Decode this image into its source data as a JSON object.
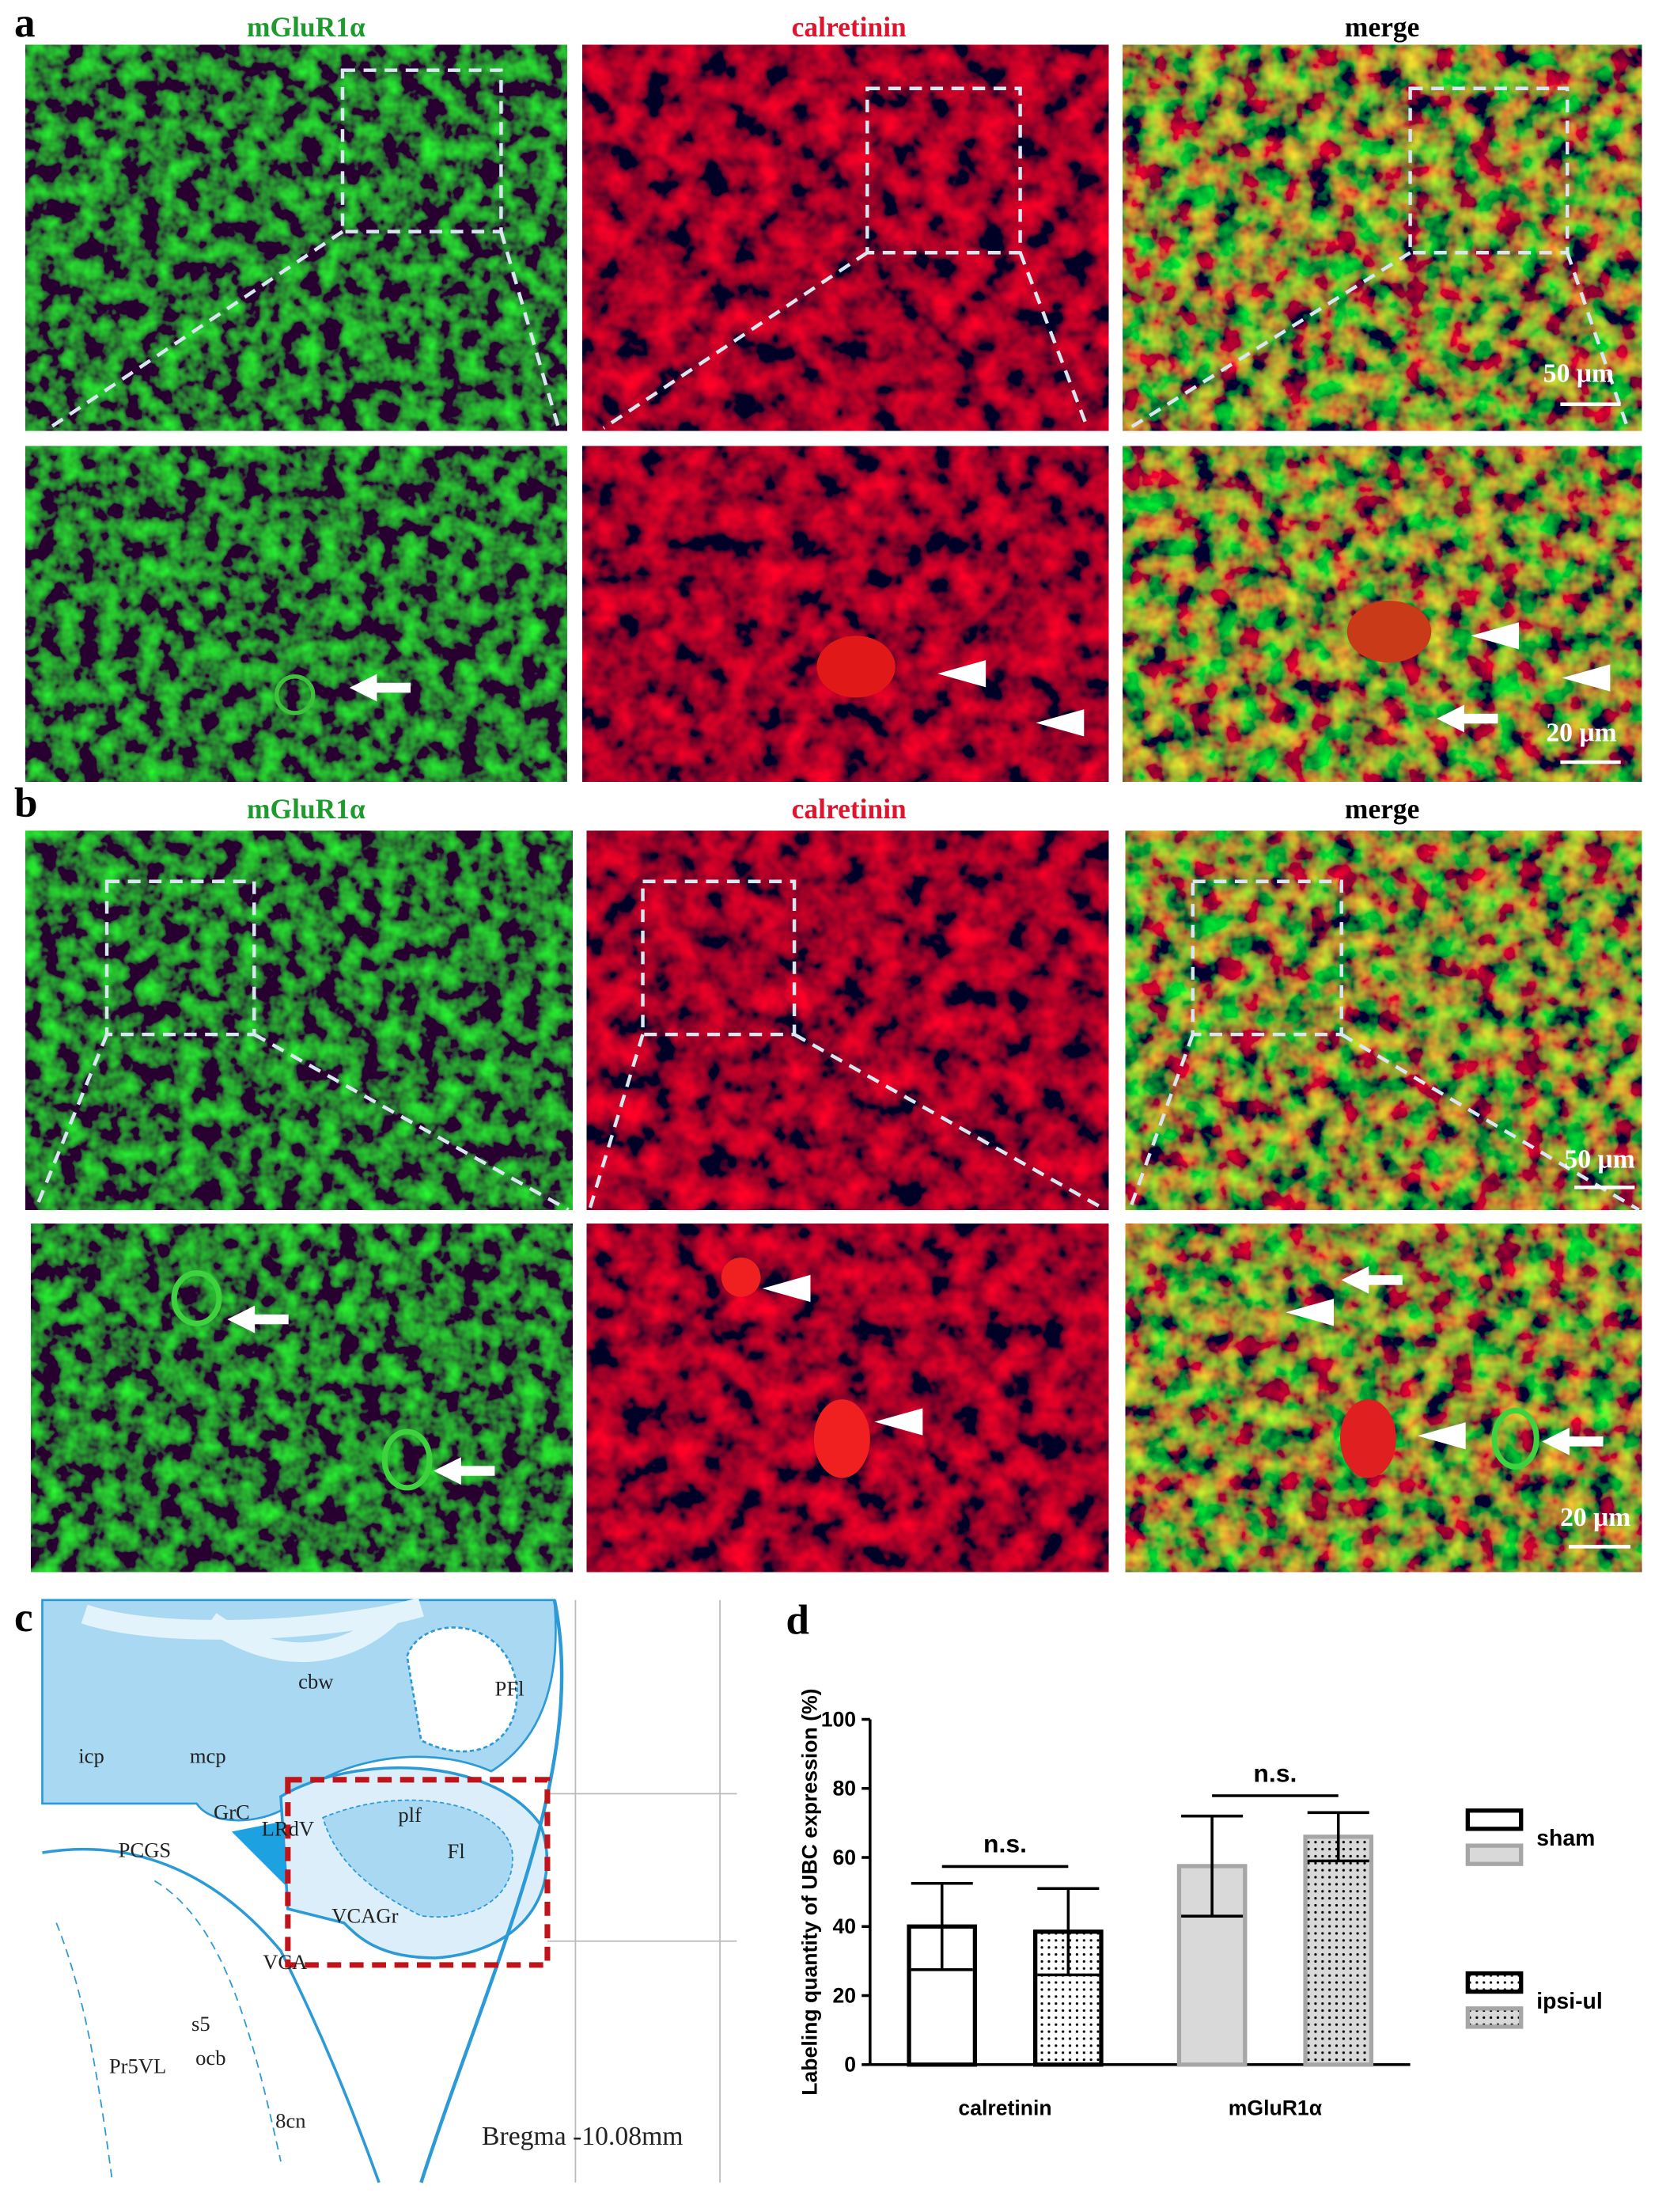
{
  "figure": {
    "panel_labels": [
      "a",
      "b",
      "c",
      "d"
    ],
    "panel_a": {
      "columns": [
        "mGluR1α",
        "calretinin",
        "merge"
      ],
      "scale_bars": [
        "50 μm",
        "20 μm"
      ]
    },
    "panel_b": {
      "columns": [
        "mGluR1α",
        "calretinin",
        "merge"
      ],
      "scale_bars": [
        "50 μm",
        "20 μm"
      ]
    },
    "panel_c": {
      "labels": [
        "cbw",
        "PFl",
        "icp",
        "mcp",
        "GrC",
        "LRdV",
        "plf",
        "Fl",
        "PCGS",
        "VCAGr",
        "VCA",
        "s5",
        "ocb",
        "Pr5VL",
        "8cn"
      ],
      "bregma": "Bregma -10.08mm"
    }
  },
  "chart_data": {
    "type": "bar",
    "ylabel": "Labeling quantity of UBC expression (%)",
    "categories": [
      "calretinin",
      "mGluR1α"
    ],
    "series": [
      {
        "name": "sham",
        "values": [
          40,
          57.5
        ],
        "errors": [
          12.5,
          14.5
        ],
        "colors": [
          "#000000",
          "#a6a6a6"
        ],
        "fills": [
          "#ffffff",
          "#d9d9d9"
        ],
        "pattern": "none"
      },
      {
        "name": "ipsi-ul",
        "values": [
          38.5,
          66
        ],
        "errors": [
          12.5,
          7
        ],
        "colors": [
          "#000000",
          "#a6a6a6"
        ],
        "fills": [
          "#ffffff",
          "#d9d9d9"
        ],
        "pattern": "dots"
      }
    ],
    "annotations": [
      "n.s.",
      "n.s."
    ],
    "ylim": [
      0,
      100
    ],
    "yticks": [
      0,
      20,
      40,
      60,
      80,
      100
    ]
  }
}
